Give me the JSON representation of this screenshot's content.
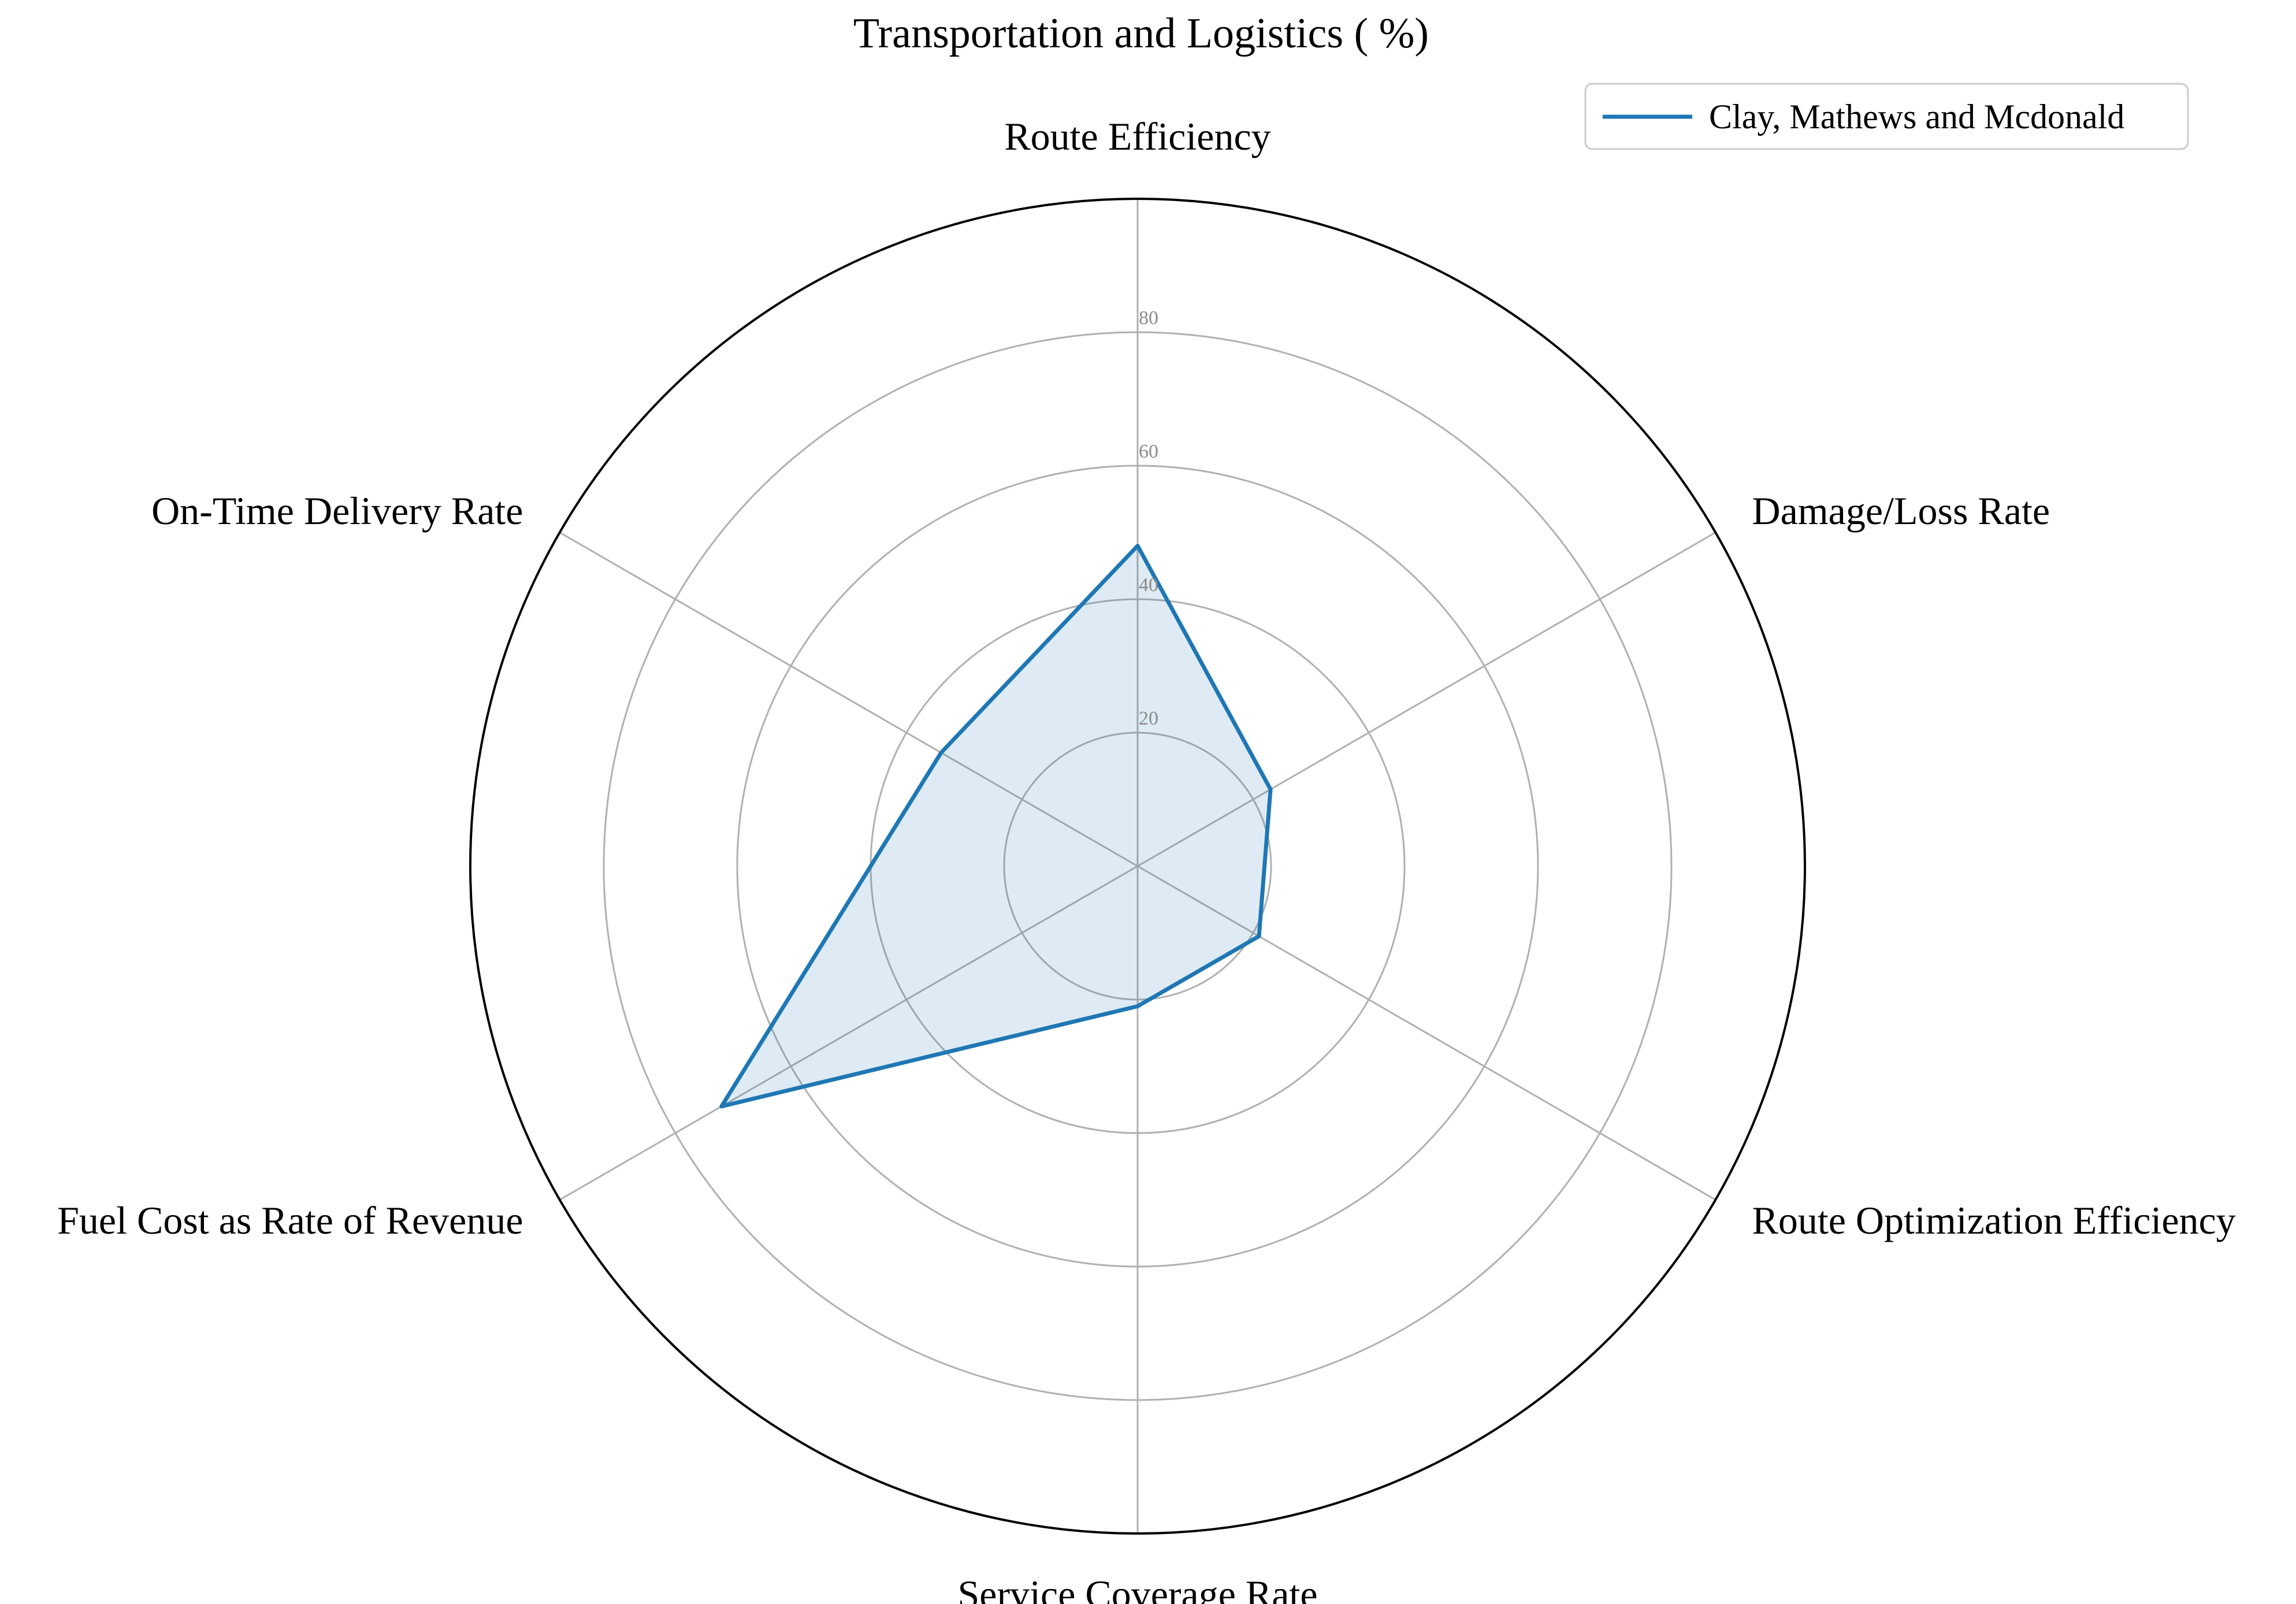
{
  "chart_data": {
    "type": "radar",
    "title": "Transportation and Logistics ( %)",
    "categories": [
      "Route Efficiency",
      "Damage/Loss Rate",
      "Route Optimization Efficiency",
      "Service Coverage Rate",
      "Fuel Cost as Rate of Revenue",
      "On-Time Delivery Rate"
    ],
    "series": [
      {
        "name": "Clay, Mathews and Mcdonald",
        "values": [
          48,
          23,
          21,
          21,
          72,
          34
        ],
        "color": "#1f77b4"
      }
    ],
    "rlim": [
      0,
      100
    ],
    "rticks": [
      20,
      40,
      60,
      80
    ],
    "rtick_labels": [
      "20",
      "40",
      "60",
      "80"
    ],
    "grid": true,
    "legend_position": "top-right",
    "fill_opacity": 0.15
  }
}
